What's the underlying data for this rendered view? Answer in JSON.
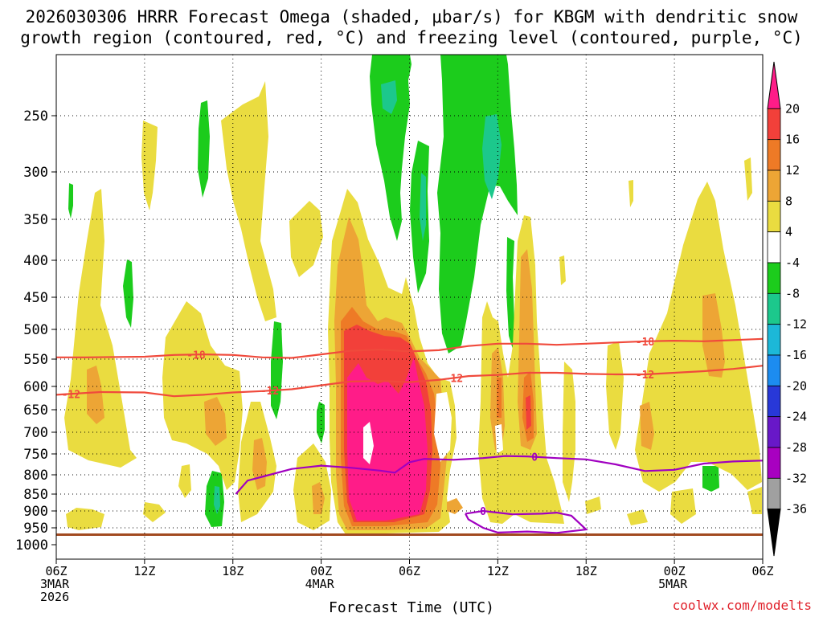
{
  "chart_data": {
    "type": "contour",
    "title_line1": "2026030306 HRRR Forecast Omega (shaded, μbar/s) for KBGM with dendritic snow",
    "title_line2": "growth region (contoured, red, °C) and freezing level (contoured, purple, °C)",
    "xlabel": "Forecast Time (UTC)",
    "credit": "coolwx.com/modelts",
    "x_hours_range": [
      0,
      48
    ],
    "x_ticks": [
      {
        "hour": 0,
        "label": "06Z",
        "sub1": "3MAR",
        "sub2": "2026"
      },
      {
        "hour": 6,
        "label": "12Z",
        "sub1": "",
        "sub2": ""
      },
      {
        "hour": 12,
        "label": "18Z",
        "sub1": "",
        "sub2": ""
      },
      {
        "hour": 18,
        "label": "00Z",
        "sub1": "4MAR",
        "sub2": ""
      },
      {
        "hour": 24,
        "label": "06Z",
        "sub1": "",
        "sub2": ""
      },
      {
        "hour": 30,
        "label": "12Z",
        "sub1": "",
        "sub2": ""
      },
      {
        "hour": 36,
        "label": "18Z",
        "sub1": "",
        "sub2": ""
      },
      {
        "hour": 42,
        "label": "00Z",
        "sub1": "5MAR",
        "sub2": ""
      },
      {
        "hour": 48,
        "label": "06Z",
        "sub1": "",
        "sub2": ""
      }
    ],
    "y_pressure_levels": [
      250,
      300,
      350,
      400,
      450,
      500,
      550,
      600,
      650,
      700,
      750,
      800,
      850,
      900,
      950,
      1000
    ],
    "colorbar": {
      "labels": [
        "20",
        "16",
        "12",
        "8",
        "4",
        "-4",
        "-8",
        "-12",
        "-16",
        "-20",
        "-24",
        "-28",
        "-32",
        "-36"
      ],
      "colors": [
        "#ff1c88",
        "#f2403a",
        "#ee7a26",
        "#eda535",
        "#eadc40",
        "#ffffff",
        "#1ccc1c",
        "#1cc88c",
        "#1cb8d8",
        "#1c8cf0",
        "#2838d8",
        "#6818c8",
        "#a800c0",
        "#a0a0a0",
        "#000000"
      ]
    },
    "red_contour_labels": [
      "-18",
      "-12"
    ],
    "purple_contour_label": "0",
    "isotherms": [
      {
        "name": "-18C",
        "color": "#f04a3c",
        "label": "-18",
        "points": [
          [
            0,
            547
          ],
          [
            2,
            547
          ],
          [
            6,
            546
          ],
          [
            8,
            543
          ],
          [
            10,
            542
          ],
          [
            12,
            543
          ],
          [
            14,
            547
          ],
          [
            16,
            548
          ],
          [
            18,
            542
          ],
          [
            20,
            536
          ],
          [
            22,
            534
          ],
          [
            24,
            537
          ],
          [
            26,
            535
          ],
          [
            28,
            528
          ],
          [
            30,
            524
          ],
          [
            32,
            524
          ],
          [
            34,
            526
          ],
          [
            36,
            524
          ],
          [
            38,
            522
          ],
          [
            40,
            520
          ],
          [
            42,
            519
          ],
          [
            44,
            520
          ],
          [
            46,
            518
          ],
          [
            48,
            516
          ]
        ],
        "label_hours": [
          9.5,
          40
        ]
      },
      {
        "name": "-12C",
        "color": "#f04a3c",
        "label": "-12",
        "points": [
          [
            0,
            618
          ],
          [
            3,
            612
          ],
          [
            6,
            613
          ],
          [
            8,
            621
          ],
          [
            10,
            618
          ],
          [
            12,
            613
          ],
          [
            14,
            610
          ],
          [
            16,
            606
          ],
          [
            18,
            598
          ],
          [
            20,
            591
          ],
          [
            22,
            590
          ],
          [
            24,
            592
          ],
          [
            26,
            588
          ],
          [
            28,
            581
          ],
          [
            30,
            579
          ],
          [
            32,
            575
          ],
          [
            34,
            575
          ],
          [
            36,
            577
          ],
          [
            38,
            578
          ],
          [
            40,
            578
          ],
          [
            42,
            575
          ],
          [
            44,
            572
          ],
          [
            46,
            568
          ],
          [
            48,
            562
          ]
        ],
        "label_hours": [
          1,
          14.5,
          27,
          40
        ]
      },
      {
        "name": "0C",
        "color": "#a000c0",
        "label": "0",
        "points": [
          [
            12.2,
            850
          ],
          [
            13,
            815
          ],
          [
            14.5,
            800
          ],
          [
            16,
            786
          ],
          [
            18,
            778
          ],
          [
            20,
            783
          ],
          [
            22,
            790
          ],
          [
            23,
            795
          ],
          [
            24,
            770
          ],
          [
            25,
            762
          ],
          [
            27,
            764
          ],
          [
            29,
            760
          ],
          [
            30.5,
            755
          ],
          [
            32,
            756
          ],
          [
            34,
            760
          ],
          [
            36,
            763
          ],
          [
            38,
            775
          ],
          [
            40,
            791
          ],
          [
            42,
            788
          ],
          [
            44,
            773
          ],
          [
            46,
            768
          ],
          [
            48,
            766
          ]
        ],
        "label_hours": [
          32.5
        ]
      },
      {
        "name": "0C-low",
        "color": "#a000c0",
        "label": "0",
        "points": [
          [
            27.8,
            908
          ],
          [
            29,
            900
          ],
          [
            31,
            910
          ],
          [
            33,
            908
          ],
          [
            34,
            905
          ],
          [
            35,
            914
          ],
          [
            36,
            955
          ],
          [
            34,
            965
          ],
          [
            32,
            961
          ],
          [
            30,
            964
          ],
          [
            29,
            950
          ],
          [
            28,
            925
          ],
          [
            27.8,
            908
          ]
        ],
        "label_hours": [
          29
        ]
      }
    ]
  }
}
